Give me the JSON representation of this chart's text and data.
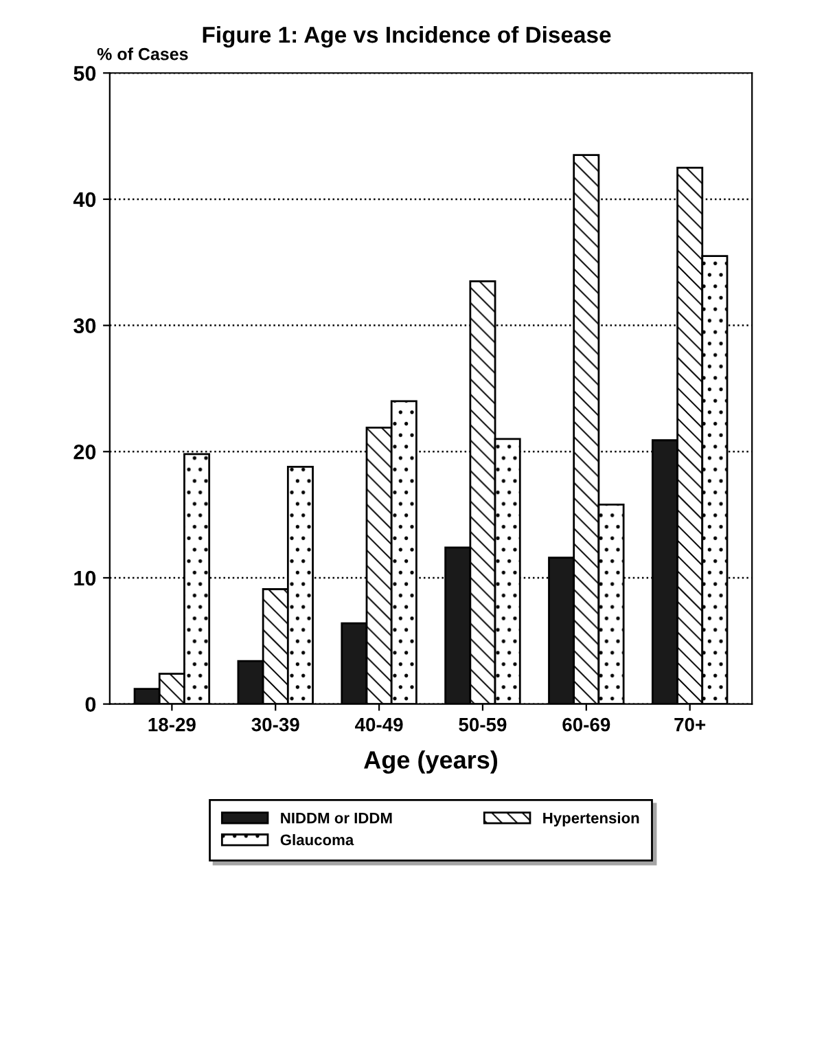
{
  "chart_data": {
    "type": "bar",
    "title": "Figure 1: Age vs Incidence of Disease",
    "xlabel": "Age (years)",
    "ylabel": "% of Cases",
    "categories": [
      "18-29",
      "30-39",
      "40-49",
      "50-59",
      "60-69",
      "70+"
    ],
    "series": [
      {
        "name": "NIDDM or IDDM",
        "color": "#1a1a1a",
        "values": [
          1.2,
          3.4,
          6.4,
          12.4,
          11.6,
          20.9
        ]
      },
      {
        "name": "Hypertension",
        "color": "#ffffff",
        "values": [
          2.4,
          9.1,
          21.9,
          33.5,
          43.5,
          42.5
        ]
      },
      {
        "name": "Glaucoma",
        "color": "#ffffff",
        "values": [
          19.8,
          18.8,
          24,
          21,
          15.8,
          35.5
        ]
      }
    ],
    "ylim": [
      0,
      50
    ],
    "yticks": [
      0,
      10,
      20,
      30,
      40,
      50
    ],
    "grid": "y",
    "legend": "bottom"
  }
}
